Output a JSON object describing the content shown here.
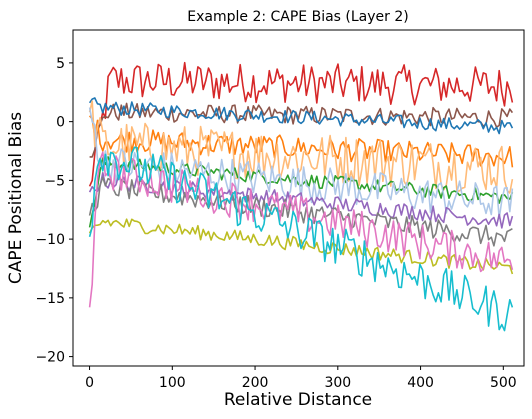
{
  "chart_data": {
    "type": "line",
    "title": "Example 2: CAPE Bias (Layer 2)",
    "xlabel": "Relative Distance",
    "ylabel": "CAPE Positional Bias",
    "xlim": [
      -20,
      525
    ],
    "ylim": [
      -20.8,
      7.8
    ],
    "xticks": [
      0,
      100,
      200,
      300,
      400,
      500
    ],
    "yticks": [
      5,
      0,
      -5,
      -10,
      -15,
      -20
    ],
    "xtick_labels": [
      "0",
      "100",
      "200",
      "300",
      "400",
      "500"
    ],
    "ytick_labels": [
      "5",
      "0",
      "−5",
      "−10",
      "−15",
      "−20"
    ],
    "grid": false,
    "legend": "none",
    "x": [
      0,
      511
    ],
    "series": [
      {
        "color": "#d62728",
        "start": -5.5,
        "peak": 3.5,
        "peak_at": 25,
        "end": 3.0,
        "noise": 1.7
      },
      {
        "color": "#8c564b",
        "start": -3.0,
        "peak": 0.8,
        "peak_at": 20,
        "end": 0.3,
        "noise": 0.8
      },
      {
        "color": "#1f77b4",
        "start": 1.6,
        "peak": 1.2,
        "peak_at": 15,
        "end": -0.5,
        "noise": 0.6
      },
      {
        "color": "#ff7f0e",
        "start": 0.5,
        "peak": -1.5,
        "peak_at": 15,
        "end": -3.0,
        "noise": 1.0
      },
      {
        "color": "#ffbb78",
        "start": 0.8,
        "peak": -2.0,
        "peak_at": 15,
        "end": -4.0,
        "noise": 2.2
      },
      {
        "color": "#2ca02c",
        "start": -9.0,
        "peak": -3.5,
        "peak_at": 15,
        "end": -6.5,
        "noise": 0.6
      },
      {
        "color": "#aec7e8",
        "start": 1.2,
        "peak": -3.5,
        "peak_at": 15,
        "end": -7.0,
        "noise": 1.6
      },
      {
        "color": "#9467bd",
        "start": -6.0,
        "peak": -5.0,
        "peak_at": 15,
        "end": -8.5,
        "noise": 0.7
      },
      {
        "color": "#7f7f7f",
        "start": -8.0,
        "peak": -5.5,
        "peak_at": 15,
        "end": -10.0,
        "noise": 0.9
      },
      {
        "color": "#bcbd22",
        "start": -9.5,
        "peak": -8.5,
        "peak_at": 15,
        "end": -12.5,
        "noise": 0.6
      },
      {
        "color": "#e377c2",
        "start": -15.8,
        "peak": -4.0,
        "peak_at": 12,
        "end": -12.0,
        "noise": 1.6
      },
      {
        "color": "#17becf",
        "start": -9.8,
        "peak": -2.5,
        "peak_at": 10,
        "end": -16.5,
        "noise": 1.8
      }
    ]
  }
}
